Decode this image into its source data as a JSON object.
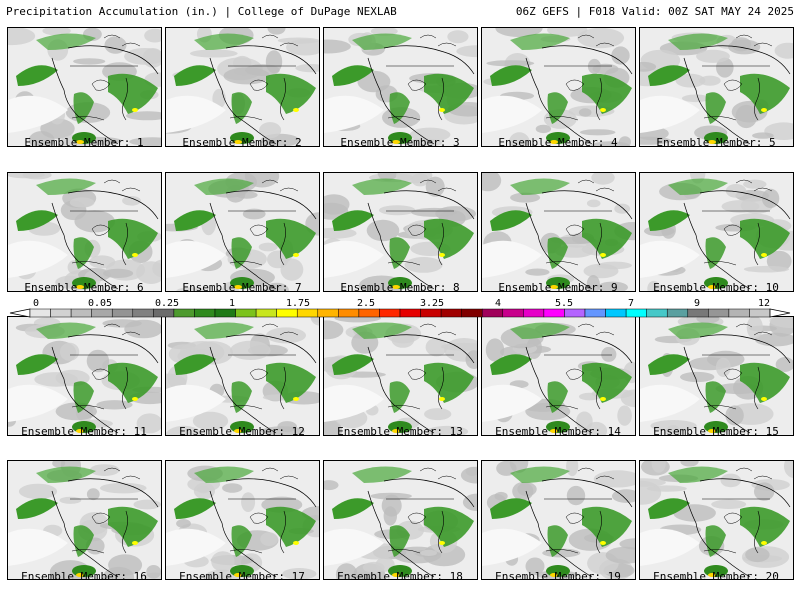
{
  "header": {
    "left": "Precipitation Accumulation (in.) | College of DuPage NEXLAB",
    "right": "06Z GEFS | F018 Valid: 00Z SAT MAY 24 2025"
  },
  "panels": [
    {
      "label": "Ensemble Member: 1"
    },
    {
      "label": "Ensemble Member: 2"
    },
    {
      "label": "Ensemble Member: 3"
    },
    {
      "label": "Ensemble Member: 4"
    },
    {
      "label": "Ensemble Member: 5"
    },
    {
      "label": "Ensemble Member: 6"
    },
    {
      "label": "Ensemble Member: 7"
    },
    {
      "label": "Ensemble Member: 8"
    },
    {
      "label": "Ensemble Member: 9"
    },
    {
      "label": "Ensemble Member: 10"
    },
    {
      "label": "Ensemble Member: 11"
    },
    {
      "label": "Ensemble Member: 12"
    },
    {
      "label": "Ensemble Member: 13"
    },
    {
      "label": "Ensemble Member: 14"
    },
    {
      "label": "Ensemble Member: 15"
    },
    {
      "label": "Ensemble Member: 16"
    },
    {
      "label": "Ensemble Member: 17"
    },
    {
      "label": "Ensemble Member: 18"
    },
    {
      "label": "Ensemble Member: 19"
    },
    {
      "label": "Ensemble Member: 20"
    }
  ],
  "colorbar": {
    "ticks": [
      "0",
      "0.05",
      "0.25",
      "1",
      "1.75",
      "2.5",
      "3.25",
      "4",
      "5.5",
      "7",
      "9",
      "12"
    ],
    "colors": [
      "#e6e6e6",
      "#d2d2d2",
      "#bdbdbd",
      "#a8a8a8",
      "#949494",
      "#808080",
      "#6b6b6b",
      "#4d9a2e",
      "#2f8a1e",
      "#1f7a16",
      "#7cc21c",
      "#c8e61e",
      "#ffff00",
      "#ffd700",
      "#ffb400",
      "#ff8c00",
      "#ff6400",
      "#ff2800",
      "#e60000",
      "#c80000",
      "#a00000",
      "#800000",
      "#a0005a",
      "#c8008c",
      "#e600c8",
      "#ff00ff",
      "#b464ff",
      "#6496ff",
      "#00c8ff",
      "#00ffff",
      "#46c8c8",
      "#5aa0a0",
      "#787878",
      "#969696",
      "#b4b4b4",
      "#c8c8c8"
    ]
  }
}
